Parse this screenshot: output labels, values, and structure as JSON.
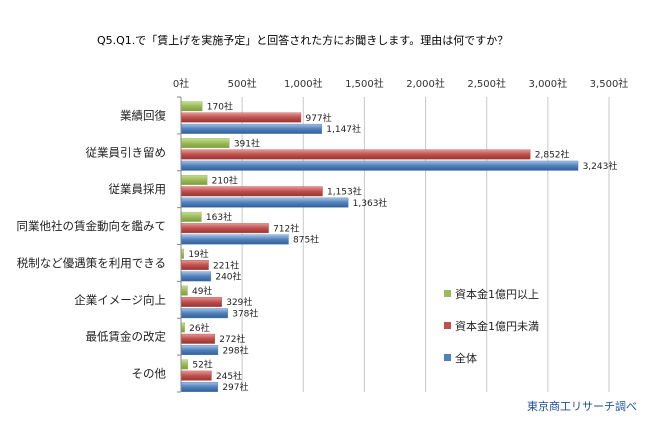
{
  "title": "Q5.Q1.で「賃上げを実施予定」と回答された方にお聞きします。理由は何ですか？",
  "source": "東京商工リサーチ調べ",
  "chart_data": {
    "type": "bar",
    "orientation": "horizontal",
    "xlim": [
      0,
      3500
    ],
    "ticks": [
      0,
      500,
      1000,
      1500,
      2000,
      2500,
      3000,
      3500
    ],
    "tick_labels": [
      "0社",
      "500社",
      "1,000社",
      "1,500社",
      "2,000社",
      "2,500社",
      "3,000社",
      "3,500社"
    ],
    "value_suffix": "社",
    "grid": true,
    "legend_position": "right",
    "categories": [
      "業績回復",
      "従業員引き留め",
      "従業員採用",
      "同業他社の賃金動向を鑑みて",
      "税制など優遇策を利用できる",
      "企業イメージ向上",
      "最低賃金の改定",
      "その他"
    ],
    "series": [
      {
        "name": "資本金1億円以上",
        "color": "#9bbb59",
        "values": [
          170,
          391,
          210,
          163,
          19,
          49,
          26,
          52
        ]
      },
      {
        "name": "資本金1億円未満",
        "color": "#c0504d",
        "values": [
          977,
          2852,
          1153,
          712,
          221,
          329,
          272,
          245
        ]
      },
      {
        "name": "全体",
        "color": "#4f81bd",
        "values": [
          1147,
          3243,
          1363,
          875,
          240,
          378,
          298,
          297
        ]
      }
    ]
  }
}
